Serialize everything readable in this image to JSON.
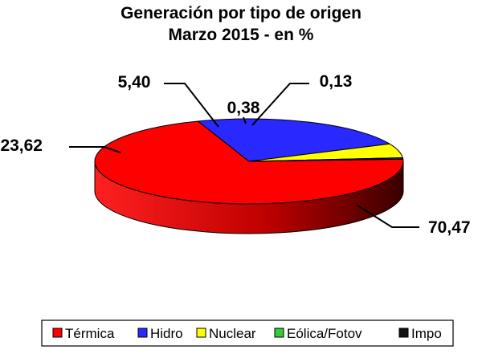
{
  "chart_data": {
    "type": "pie",
    "title": "Generación por tipo de origen",
    "subtitle": "Marzo 2015 - en %",
    "categories": [
      "Térmica",
      "Hidro",
      "Nuclear",
      "Eólica/Fotov",
      "Impo"
    ],
    "values": [
      70.47,
      23.62,
      5.4,
      0.38,
      0.13
    ],
    "data_labels": [
      "70,47",
      "23,62",
      "5,40",
      "0,38",
      "0,13"
    ],
    "colors": [
      "#ff0000",
      "#2828ff",
      "#ffff00",
      "#33cc33",
      "#111111"
    ],
    "legend_placement": "bottom",
    "legend_entries": [
      "Térmica",
      "Hidro",
      "Nuclear",
      "Eólica/Fotov",
      "Impo"
    ],
    "style": "3d"
  }
}
